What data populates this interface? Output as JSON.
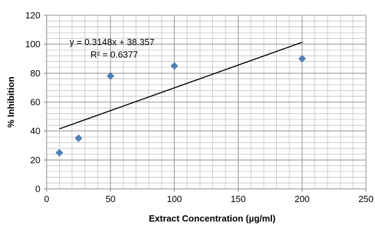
{
  "chart_data": {
    "type": "scatter",
    "title": "",
    "xlabel": "Extract Concentration (µg/ml)",
    "ylabel": "% Inhibition",
    "xlim": [
      0,
      250
    ],
    "ylim": [
      0,
      120
    ],
    "x_ticks": [
      "0",
      "50",
      "100",
      "150",
      "200",
      "250"
    ],
    "y_ticks": [
      "0",
      "20",
      "40",
      "60",
      "80",
      "100",
      "120"
    ],
    "grid": true,
    "legend": "none",
    "series": [
      {
        "points": [
          {
            "x": 10,
            "y": 25
          },
          {
            "x": 25,
            "y": 35
          },
          {
            "x": 50,
            "y": 78
          },
          {
            "x": 100,
            "y": 85
          },
          {
            "x": 200,
            "y": 90
          }
        ],
        "marker": "diamond",
        "color": "#4F81BD"
      }
    ],
    "trendline": {
      "type": "linear",
      "slope": 0.3148,
      "intercept": 38.357,
      "x_range": [
        10,
        200
      ],
      "color": "#000000"
    },
    "annotations": {
      "equation": "y = 0.3148x + 38.357",
      "r_squared": "R² = 0.6377"
    }
  }
}
